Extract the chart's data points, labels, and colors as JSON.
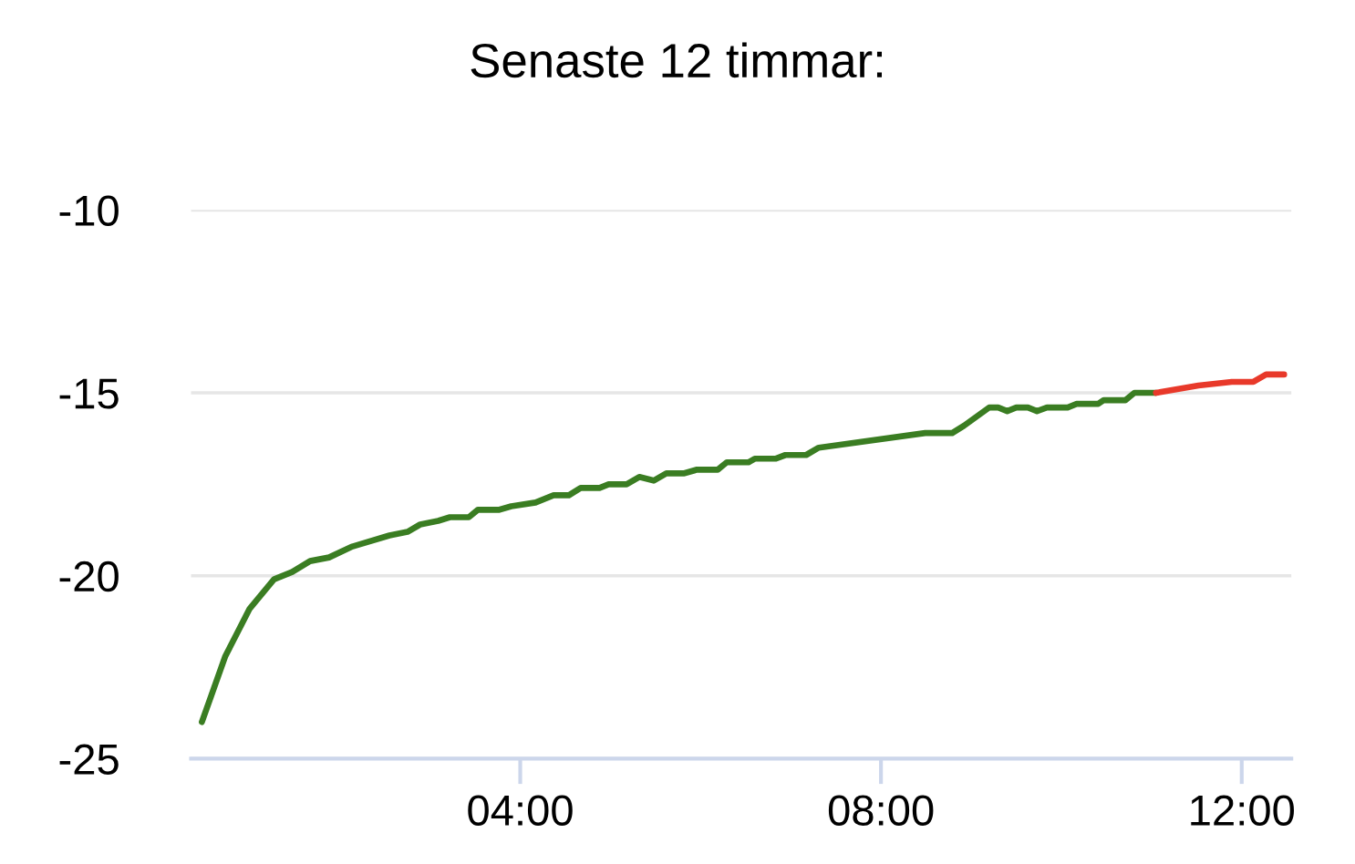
{
  "chart_data": {
    "type": "line",
    "title": "Senaste 12 timmar:",
    "xlim": [
      0.35,
      12.55
    ],
    "xticks": [
      {
        "value": 4,
        "label": "04:00"
      },
      {
        "value": 8,
        "label": "08:00"
      },
      {
        "value": 12,
        "label": "12:00"
      }
    ],
    "ylim": [
      -25,
      -10
    ],
    "yticks": [
      -25,
      -20,
      -15,
      -10
    ],
    "grid": "y",
    "marker": "none",
    "line_style": "solid",
    "series": [
      {
        "color": "#3a7d22",
        "x": [
          0.47,
          0.73,
          1.0,
          1.27,
          1.47,
          1.67,
          1.88,
          2.14,
          2.55,
          2.75,
          2.89,
          3.09,
          3.22,
          3.43,
          3.53,
          3.76,
          3.9,
          4.17,
          4.37,
          4.54,
          4.67,
          4.88,
          4.98,
          5.18,
          5.32,
          5.48,
          5.62,
          5.82,
          5.96,
          6.19,
          6.29,
          6.53,
          6.6,
          6.83,
          6.94,
          7.17,
          7.31,
          8.49,
          8.79,
          8.92,
          9.2,
          9.3,
          9.4,
          9.5,
          9.63,
          9.73,
          9.84,
          10.07,
          10.17,
          10.41,
          10.47,
          10.71,
          10.81,
          11.05
        ],
        "values": [
          -24.0,
          -22.2,
          -20.9,
          -20.1,
          -19.9,
          -19.6,
          -19.5,
          -19.2,
          -18.9,
          -18.8,
          -18.6,
          -18.5,
          -18.4,
          -18.4,
          -18.2,
          -18.2,
          -18.1,
          -18.0,
          -17.8,
          -17.8,
          -17.6,
          -17.6,
          -17.5,
          -17.5,
          -17.3,
          -17.4,
          -17.2,
          -17.2,
          -17.1,
          -17.1,
          -16.9,
          -16.9,
          -16.8,
          -16.8,
          -16.7,
          -16.7,
          -16.5,
          -16.1,
          -16.1,
          -15.9,
          -15.4,
          -15.4,
          -15.5,
          -15.4,
          -15.4,
          -15.5,
          -15.4,
          -15.4,
          -15.3,
          -15.3,
          -15.2,
          -15.2,
          -15.0,
          -15.0
        ]
      },
      {
        "color": "#e8392a",
        "x": [
          11.05,
          11.52,
          11.89,
          12.13,
          12.27,
          12.47
        ],
        "values": [
          -15.0,
          -14.8,
          -14.7,
          -14.7,
          -14.5,
          -14.5
        ]
      }
    ]
  }
}
